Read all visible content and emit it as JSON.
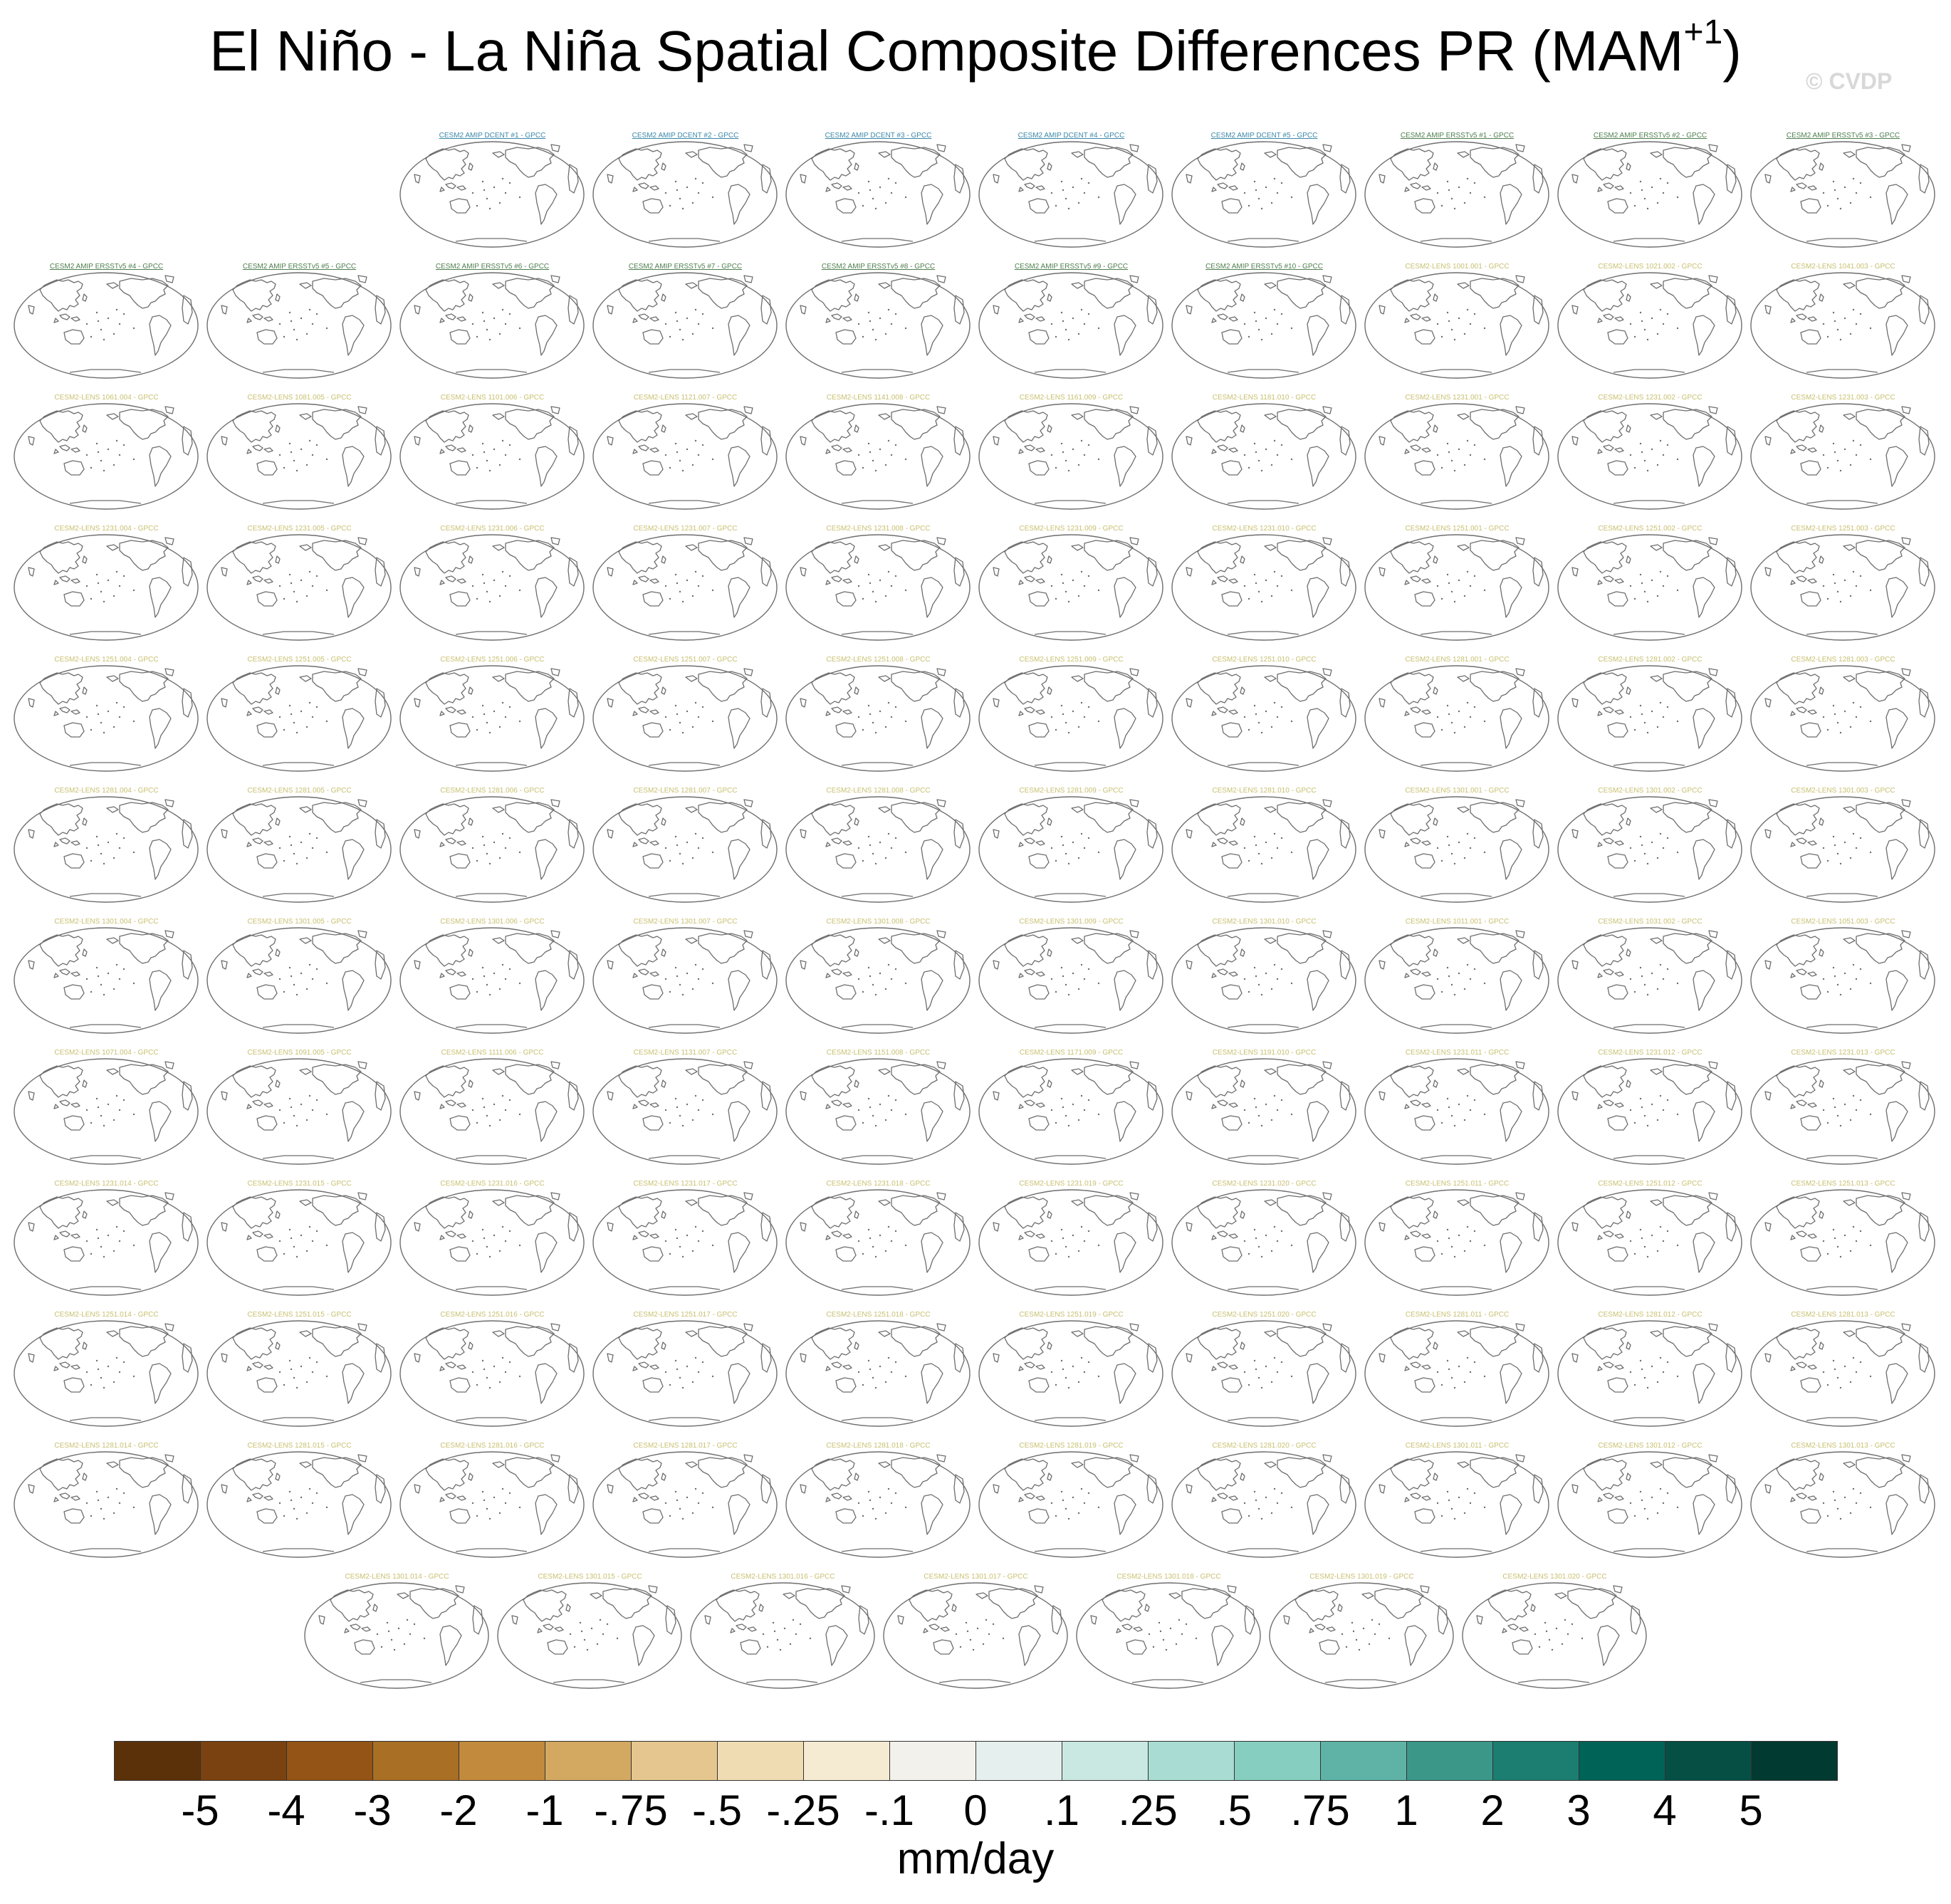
{
  "figure": {
    "title_main": "El Niño - La Niña Spatial Composite Differences PR (MAM",
    "title_sup": "+1",
    "title_close": ")",
    "watermark": "© CVDP",
    "units": "mm/day"
  },
  "colors": {
    "label_amip_dcent": "#3c88a8",
    "label_amip_ersst": "#4f7f4f",
    "label_lens": "#c8c070",
    "coastline": "#6e6e6e",
    "map_border": "#6e6e6e"
  },
  "panel_rows": [
    {
      "labels": [
        "CESM2 AMIP DCENT #1 - GPCC",
        "CESM2 AMIP DCENT #2 - GPCC",
        "CESM2 AMIP DCENT #3 - GPCC",
        "CESM2 AMIP DCENT #4 - GPCC",
        "CESM2 AMIP DCENT #5 - GPCC",
        "CESM2 AMIP ERSSTv5 #1 - GPCC",
        "CESM2 AMIP ERSSTv5 #2 - GPCC",
        "CESM2 AMIP ERSSTv5 #3 - GPCC"
      ]
    },
    {
      "labels": [
        "CESM2 AMIP ERSSTv5 #4 - GPCC",
        "CESM2 AMIP ERSSTv5 #5 - GPCC",
        "CESM2 AMIP ERSSTv5 #6 - GPCC",
        "CESM2 AMIP ERSSTv5 #7 - GPCC",
        "CESM2 AMIP ERSSTv5 #8 - GPCC",
        "CESM2 AMIP ERSSTv5 #9 - GPCC",
        "CESM2 AMIP ERSSTv5 #10 - GPCC",
        "CESM2-LENS 1001.001 - GPCC",
        "CESM2-LENS 1021.002 - GPCC",
        "CESM2-LENS 1041.003 - GPCC"
      ]
    },
    {
      "labels": [
        "CESM2-LENS 1061.004 - GPCC",
        "CESM2-LENS 1081.005 - GPCC",
        "CESM2-LENS 1101.006 - GPCC",
        "CESM2-LENS 1121.007 - GPCC",
        "CESM2-LENS 1141.008 - GPCC",
        "CESM2-LENS 1161.009 - GPCC",
        "CESM2-LENS 1181.010 - GPCC",
        "CESM2-LENS 1231.001 - GPCC",
        "CESM2-LENS 1231.002 - GPCC",
        "CESM2-LENS 1231.003 - GPCC"
      ]
    },
    {
      "labels": [
        "CESM2-LENS 1231.004 - GPCC",
        "CESM2-LENS 1231.005 - GPCC",
        "CESM2-LENS 1231.006 - GPCC",
        "CESM2-LENS 1231.007 - GPCC",
        "CESM2-LENS 1231.008 - GPCC",
        "CESM2-LENS 1231.009 - GPCC",
        "CESM2-LENS 1231.010 - GPCC",
        "CESM2-LENS 1251.001 - GPCC",
        "CESM2-LENS 1251.002 - GPCC",
        "CESM2-LENS 1251.003 - GPCC"
      ]
    },
    {
      "labels": [
        "CESM2-LENS 1251.004 - GPCC",
        "CESM2-LENS 1251.005 - GPCC",
        "CESM2-LENS 1251.006 - GPCC",
        "CESM2-LENS 1251.007 - GPCC",
        "CESM2-LENS 1251.008 - GPCC",
        "CESM2-LENS 1251.009 - GPCC",
        "CESM2-LENS 1251.010 - GPCC",
        "CESM2-LENS 1281.001 - GPCC",
        "CESM2-LENS 1281.002 - GPCC",
        "CESM2-LENS 1281.003 - GPCC"
      ]
    },
    {
      "labels": [
        "CESM2-LENS 1281.004 - GPCC",
        "CESM2-LENS 1281.005 - GPCC",
        "CESM2-LENS 1281.006 - GPCC",
        "CESM2-LENS 1281.007 - GPCC",
        "CESM2-LENS 1281.008 - GPCC",
        "CESM2-LENS 1281.009 - GPCC",
        "CESM2-LENS 1281.010 - GPCC",
        "CESM2-LENS 1301.001 - GPCC",
        "CESM2-LENS 1301.002 - GPCC",
        "CESM2-LENS 1301.003 - GPCC"
      ]
    },
    {
      "labels": [
        "CESM2-LENS 1301.004 - GPCC",
        "CESM2-LENS 1301.005 - GPCC",
        "CESM2-LENS 1301.006 - GPCC",
        "CESM2-LENS 1301.007 - GPCC",
        "CESM2-LENS 1301.008 - GPCC",
        "CESM2-LENS 1301.009 - GPCC",
        "CESM2-LENS 1301.010 - GPCC",
        "CESM2-LENS 1011.001 - GPCC",
        "CESM2-LENS 1031.002 - GPCC",
        "CESM2-LENS 1051.003 - GPCC"
      ]
    },
    {
      "labels": [
        "CESM2-LENS 1071.004 - GPCC",
        "CESM2-LENS 1091.005 - GPCC",
        "CESM2-LENS 1111.006 - GPCC",
        "CESM2-LENS 1131.007 - GPCC",
        "CESM2-LENS 1151.008 - GPCC",
        "CESM2-LENS 1171.009 - GPCC",
        "CESM2-LENS 1191.010 - GPCC",
        "CESM2-LENS 1231.011 - GPCC",
        "CESM2-LENS 1231.012 - GPCC",
        "CESM2-LENS 1231.013 - GPCC"
      ]
    },
    {
      "labels": [
        "CESM2-LENS 1231.014 - GPCC",
        "CESM2-LENS 1231.015 - GPCC",
        "CESM2-LENS 1231.016 - GPCC",
        "CESM2-LENS 1231.017 - GPCC",
        "CESM2-LENS 1231.018 - GPCC",
        "CESM2-LENS 1231.019 - GPCC",
        "CESM2-LENS 1231.020 - GPCC",
        "CESM2-LENS 1251.011 - GPCC",
        "CESM2-LENS 1251.012 - GPCC",
        "CESM2-LENS 1251.013 - GPCC"
      ]
    },
    {
      "labels": [
        "CESM2-LENS 1251.014 - GPCC",
        "CESM2-LENS 1251.015 - GPCC",
        "CESM2-LENS 1251.016 - GPCC",
        "CESM2-LENS 1251.017 - GPCC",
        "CESM2-LENS 1251.018 - GPCC",
        "CESM2-LENS 1251.019 - GPCC",
        "CESM2-LENS 1251.020 - GPCC",
        "CESM2-LENS 1281.011 - GPCC",
        "CESM2-LENS 1281.012 - GPCC",
        "CESM2-LENS 1281.013 - GPCC"
      ]
    },
    {
      "labels": [
        "CESM2-LENS 1281.014 - GPCC",
        "CESM2-LENS 1281.015 - GPCC",
        "CESM2-LENS 1281.016 - GPCC",
        "CESM2-LENS 1281.017 - GPCC",
        "CESM2-LENS 1281.018 - GPCC",
        "CESM2-LENS 1281.019 - GPCC",
        "CESM2-LENS 1281.020 - GPCC",
        "CESM2-LENS 1301.011 - GPCC",
        "CESM2-LENS 1301.012 - GPCC",
        "CESM2-LENS 1301.013 - GPCC"
      ]
    },
    {
      "labels": [
        "CESM2-LENS 1301.014 - GPCC",
        "CESM2-LENS 1301.015 - GPCC",
        "CESM2-LENS 1301.016 - GPCC",
        "CESM2-LENS 1301.017 - GPCC",
        "CESM2-LENS 1301.018 - GPCC",
        "CESM2-LENS 1301.019 - GPCC",
        "CESM2-LENS 1301.020 - GPCC"
      ]
    }
  ],
  "colorbar": {
    "ticks": [
      "-5",
      "-4",
      "-3",
      "-2",
      "-1",
      "-.75",
      "-.5",
      "-.25",
      "-.1",
      "0",
      ".1",
      ".25",
      ".5",
      ".75",
      "1",
      "2",
      "3",
      "4",
      "5"
    ],
    "colors": [
      "#5b310a",
      "#7a4210",
      "#935415",
      "#a86f25",
      "#c28a3c",
      "#d3a861",
      "#e5c68e",
      "#efdcb3",
      "#f5ebd2",
      "#f3f1ec",
      "#e5efed",
      "#cae8e2",
      "#a9ddd3",
      "#86cec0",
      "#5fb3a6",
      "#3b9889",
      "#1c7e70",
      "#006357",
      "#054f45",
      "#003a30"
    ]
  }
}
